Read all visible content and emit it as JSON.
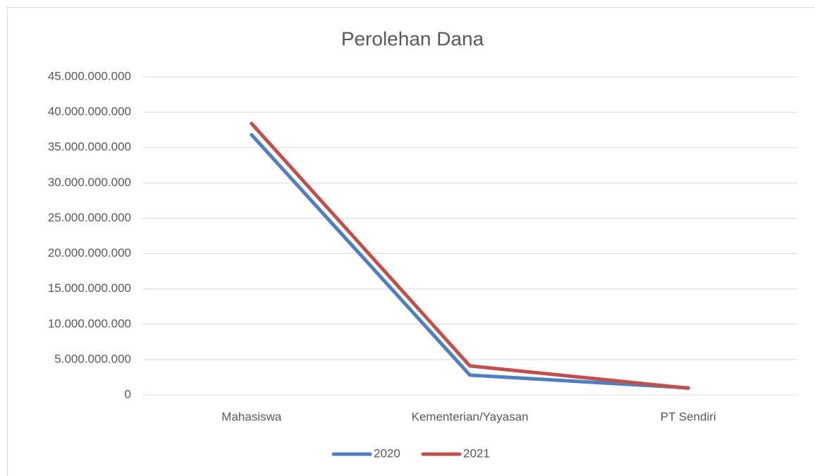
{
  "chart_data": {
    "type": "line",
    "title": "Perolehan Dana",
    "categories": [
      "Mahasiswa",
      "Kementerian/Yayasan",
      "PT Sendiri"
    ],
    "series": [
      {
        "name": "2020",
        "color": "#4f7fc1",
        "values": [
          36800000000,
          2800000000,
          1000000000
        ]
      },
      {
        "name": "2021",
        "color": "#c0504d",
        "values": [
          38400000000,
          4100000000,
          950000000
        ]
      }
    ],
    "ylim": [
      0,
      45000000000
    ],
    "yticks": [
      0,
      {
        "value": 5000000000,
        "label": "5.000.000.000"
      },
      {
        "value": 10000000000,
        "label": "10.000.000.000"
      },
      {
        "value": 15000000000,
        "label": "15.000.000.000"
      },
      {
        "value": 20000000000,
        "label": "20.000.000.000"
      },
      {
        "value": 25000000000,
        "label": "25.000.000.000"
      },
      {
        "value": 30000000000,
        "label": "30.000.000.000"
      },
      {
        "value": 35000000000,
        "label": "35.000.000.000"
      },
      {
        "value": 40000000000,
        "label": "40.000.000.000"
      },
      {
        "value": 45000000000,
        "label": "45.000.000.000"
      }
    ],
    "grid": true,
    "legend": "bottom"
  }
}
